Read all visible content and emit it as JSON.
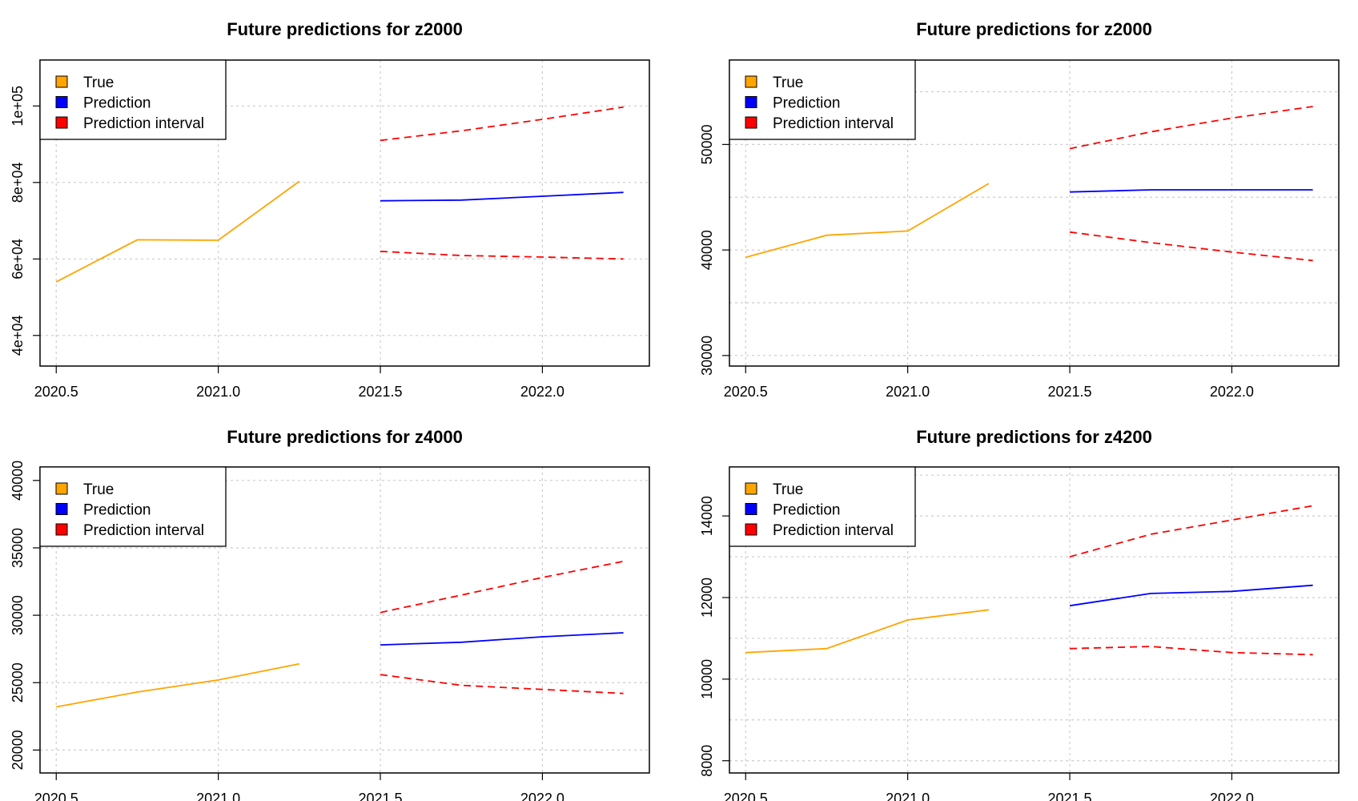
{
  "chart_data": [
    {
      "type": "line",
      "title": "Future predictions for z2000",
      "xlabel": "",
      "ylabel": "",
      "xlim": [
        2020.45,
        2022.33
      ],
      "ylim": [
        32000,
        112000
      ],
      "x_ticks": [
        2020.5,
        2021.0,
        2021.5,
        2022.0
      ],
      "x_tick_labels": [
        "2020.5",
        "2021.0",
        "2021.5",
        "2022.0"
      ],
      "y_ticks": [
        40000,
        60000,
        80000,
        100000
      ],
      "y_tick_labels": [
        "4e+04",
        "6e+04",
        "8e+04",
        "1e+05"
      ],
      "legend_position": "top-left",
      "grid": true,
      "series": [
        {
          "name": "True",
          "color": "#FFA500",
          "style": "solid",
          "x": [
            2020.5,
            2020.75,
            2021.0,
            2021.25
          ],
          "values": [
            54000,
            65000,
            64900,
            80300
          ]
        },
        {
          "name": "Prediction",
          "color": "#0000FF",
          "style": "solid",
          "x": [
            2021.5,
            2021.75,
            2022.0,
            2022.25
          ],
          "values": [
            75200,
            75400,
            76400,
            77400
          ]
        },
        {
          "name": "Prediction interval",
          "color": "#FF0000",
          "style": "dashed",
          "x": [
            2021.5,
            2021.75,
            2022.0,
            2022.25
          ],
          "values": [
            91000,
            93500,
            96500,
            99700
          ]
        },
        {
          "name": "Prediction interval",
          "color": "#FF0000",
          "style": "dashed",
          "legend": false,
          "x": [
            2021.5,
            2021.75,
            2022.0,
            2022.25
          ],
          "values": [
            62000,
            60900,
            60500,
            60000
          ]
        }
      ]
    },
    {
      "type": "line",
      "title": "Future predictions for z2000",
      "xlabel": "",
      "ylabel": "",
      "xlim": [
        2020.45,
        2022.33
      ],
      "ylim": [
        29000,
        58000
      ],
      "x_ticks": [
        2020.5,
        2021.0,
        2021.5,
        2022.0
      ],
      "x_tick_labels": [
        "2020.5",
        "2021.0",
        "2021.5",
        "2022.0"
      ],
      "y_ticks": [
        30000,
        40000,
        50000
      ],
      "y_tick_labels": [
        "30000",
        "40000",
        "50000"
      ],
      "y_grid": [
        30000,
        35000,
        40000,
        45000,
        50000,
        55000
      ],
      "legend_position": "top-left",
      "grid": true,
      "series": [
        {
          "name": "True",
          "color": "#FFA500",
          "style": "solid",
          "x": [
            2020.5,
            2020.75,
            2021.0,
            2021.25
          ],
          "values": [
            39300,
            41400,
            41800,
            46300
          ]
        },
        {
          "name": "Prediction",
          "color": "#0000FF",
          "style": "solid",
          "x": [
            2021.5,
            2021.75,
            2022.0,
            2022.25
          ],
          "values": [
            45500,
            45700,
            45700,
            45700
          ]
        },
        {
          "name": "Prediction interval",
          "color": "#FF0000",
          "style": "dashed",
          "x": [
            2021.5,
            2021.75,
            2022.0,
            2022.25
          ],
          "values": [
            49600,
            51200,
            52500,
            53600
          ]
        },
        {
          "name": "Prediction interval",
          "color": "#FF0000",
          "style": "dashed",
          "legend": false,
          "x": [
            2021.5,
            2021.75,
            2022.0,
            2022.25
          ],
          "values": [
            41700,
            40700,
            39800,
            39000
          ]
        }
      ]
    },
    {
      "type": "line",
      "title": "Future predictions for z4000",
      "xlabel": "",
      "ylabel": "",
      "xlim": [
        2020.45,
        2022.33
      ],
      "ylim": [
        18300,
        41000
      ],
      "x_ticks": [
        2020.5,
        2021.0,
        2021.5,
        2022.0
      ],
      "x_tick_labels": [
        "2020.5",
        "2021.0",
        "2021.5",
        "2022.0"
      ],
      "y_ticks": [
        20000,
        25000,
        30000,
        35000,
        40000
      ],
      "y_tick_labels": [
        "20000",
        "25000",
        "30000",
        "35000",
        "40000"
      ],
      "legend_position": "top-left",
      "grid": true,
      "series": [
        {
          "name": "True",
          "color": "#FFA500",
          "style": "solid",
          "x": [
            2020.5,
            2020.75,
            2021.0,
            2021.25
          ],
          "values": [
            23200,
            24300,
            25200,
            26400
          ]
        },
        {
          "name": "Prediction",
          "color": "#0000FF",
          "style": "solid",
          "x": [
            2021.5,
            2021.75,
            2022.0,
            2022.25
          ],
          "values": [
            27800,
            28000,
            28400,
            28700
          ]
        },
        {
          "name": "Prediction interval",
          "color": "#FF0000",
          "style": "dashed",
          "x": [
            2021.5,
            2021.75,
            2022.0,
            2022.25
          ],
          "values": [
            30200,
            31500,
            32800,
            34000
          ]
        },
        {
          "name": "Prediction interval",
          "color": "#FF0000",
          "style": "dashed",
          "legend": false,
          "x": [
            2021.5,
            2021.75,
            2022.0,
            2022.25
          ],
          "values": [
            25600,
            24800,
            24500,
            24200
          ]
        }
      ]
    },
    {
      "type": "line",
      "title": "Future predictions for z4200",
      "xlabel": "",
      "ylabel": "",
      "xlim": [
        2020.45,
        2022.33
      ],
      "ylim": [
        7700,
        15200
      ],
      "x_ticks": [
        2020.5,
        2021.0,
        2021.5,
        2022.0
      ],
      "x_tick_labels": [
        "2020.5",
        "2021.0",
        "2021.5",
        "2022.0"
      ],
      "y_ticks": [
        8000,
        10000,
        12000,
        14000
      ],
      "y_tick_labels": [
        "8000",
        "10000",
        "12000",
        "14000"
      ],
      "y_grid": [
        8000,
        9000,
        10000,
        11000,
        12000,
        13000,
        14000,
        15000
      ],
      "legend_position": "top-left",
      "grid": true,
      "series": [
        {
          "name": "True",
          "color": "#FFA500",
          "style": "solid",
          "x": [
            2020.5,
            2020.75,
            2021.0,
            2021.25
          ],
          "values": [
            10650,
            10750,
            11450,
            11700
          ]
        },
        {
          "name": "Prediction",
          "color": "#0000FF",
          "style": "solid",
          "x": [
            2021.5,
            2021.75,
            2022.0,
            2022.25
          ],
          "values": [
            11800,
            12100,
            12150,
            12300
          ]
        },
        {
          "name": "Prediction interval",
          "color": "#FF0000",
          "style": "dashed",
          "x": [
            2021.5,
            2021.75,
            2022.0,
            2022.25
          ],
          "values": [
            13000,
            13550,
            13900,
            14250
          ]
        },
        {
          "name": "Prediction interval",
          "color": "#FF0000",
          "style": "dashed",
          "legend": false,
          "x": [
            2021.5,
            2021.75,
            2022.0,
            2022.25
          ],
          "values": [
            10750,
            10800,
            10650,
            10600
          ]
        }
      ]
    }
  ]
}
